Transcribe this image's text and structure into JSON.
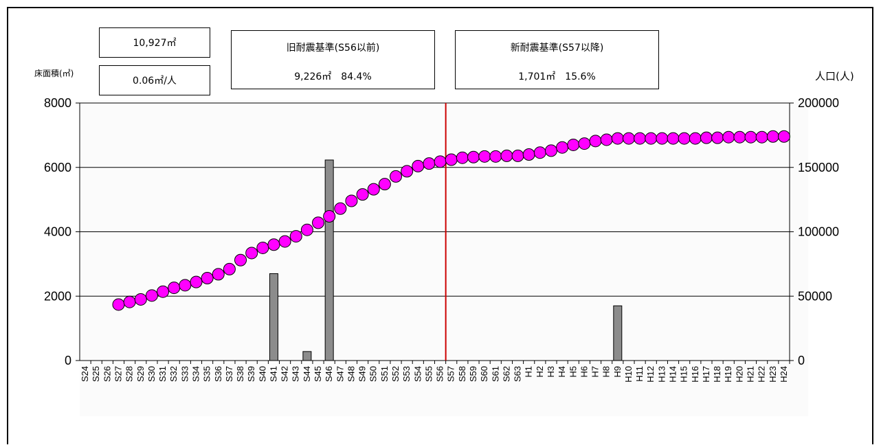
{
  "summary": {
    "total_area": "10,927㎡",
    "per_capita": "0.06㎡/人",
    "floor_area_label": "床面積(㎡)",
    "population_label": "人口(人)",
    "old_standard": {
      "title": "旧耐震基準(S56以前)",
      "value": "9,226㎡　84.4%"
    },
    "new_standard": {
      "title": "新耐震基準(S57以降)",
      "value": "1,701㎡　15.6%"
    }
  },
  "chart_data": {
    "type": "bar",
    "categories": [
      "S24",
      "S25",
      "S26",
      "S27",
      "S28",
      "S29",
      "S30",
      "S31",
      "S32",
      "S33",
      "S34",
      "S35",
      "S36",
      "S37",
      "S38",
      "S39",
      "S40",
      "S41",
      "S42",
      "S43",
      "S44",
      "S45",
      "S46",
      "S47",
      "S48",
      "S49",
      "S50",
      "S51",
      "S52",
      "S53",
      "S54",
      "S55",
      "S56",
      "S57",
      "S58",
      "S59",
      "S60",
      "S61",
      "S62",
      "S63",
      "H1",
      "H2",
      "H3",
      "H4",
      "H5",
      "H6",
      "H7",
      "H8",
      "H9",
      "H10",
      "H11",
      "H12",
      "H13",
      "H14",
      "H15",
      "H16",
      "H17",
      "H18",
      "H19",
      "H20",
      "H21",
      "H22",
      "H23",
      "H24"
    ],
    "series": [
      {
        "type": "bar",
        "axis": "left",
        "color": "#8c8c8c",
        "values": [
          0,
          0,
          0,
          0,
          0,
          0,
          0,
          0,
          0,
          0,
          0,
          0,
          0,
          0,
          0,
          0,
          0,
          2700,
          0,
          0,
          280,
          0,
          6230,
          0,
          0,
          0,
          0,
          0,
          0,
          0,
          0,
          0,
          0,
          0,
          0,
          0,
          0,
          0,
          0,
          0,
          0,
          0,
          0,
          0,
          0,
          0,
          0,
          0,
          1700,
          0,
          0,
          0,
          0,
          0,
          0,
          0,
          0,
          0,
          0,
          0,
          0,
          0,
          0,
          0
        ]
      },
      {
        "type": "line",
        "axis": "right",
        "color": "#ff00ff",
        "values": [
          null,
          null,
          null,
          43500,
          45500,
          47500,
          50500,
          53500,
          56500,
          58500,
          61000,
          64000,
          67000,
          71000,
          78000,
          83500,
          87500,
          90000,
          92500,
          96500,
          101500,
          107000,
          112000,
          118000,
          124000,
          129000,
          133000,
          137000,
          143000,
          147000,
          151000,
          153000,
          154500,
          156000,
          157500,
          158000,
          158500,
          158500,
          159000,
          159000,
          160000,
          161500,
          163000,
          165500,
          167500,
          168500,
          170500,
          171500,
          172500,
          172500,
          172500,
          172500,
          172500,
          172500,
          172500,
          172500,
          173000,
          173000,
          173500,
          173500,
          173500,
          173500,
          174000,
          174000
        ]
      }
    ],
    "y_left": {
      "ticks": [
        0,
        2000,
        4000,
        6000,
        8000
      ],
      "range": [
        0,
        8000
      ]
    },
    "y_right": {
      "ticks": [
        0,
        50000,
        100000,
        150000,
        200000
      ],
      "range": [
        0,
        200000
      ]
    },
    "grid": true,
    "divider_after": "S56",
    "divider_color": "#cc0000",
    "axis_color": "#000000"
  }
}
